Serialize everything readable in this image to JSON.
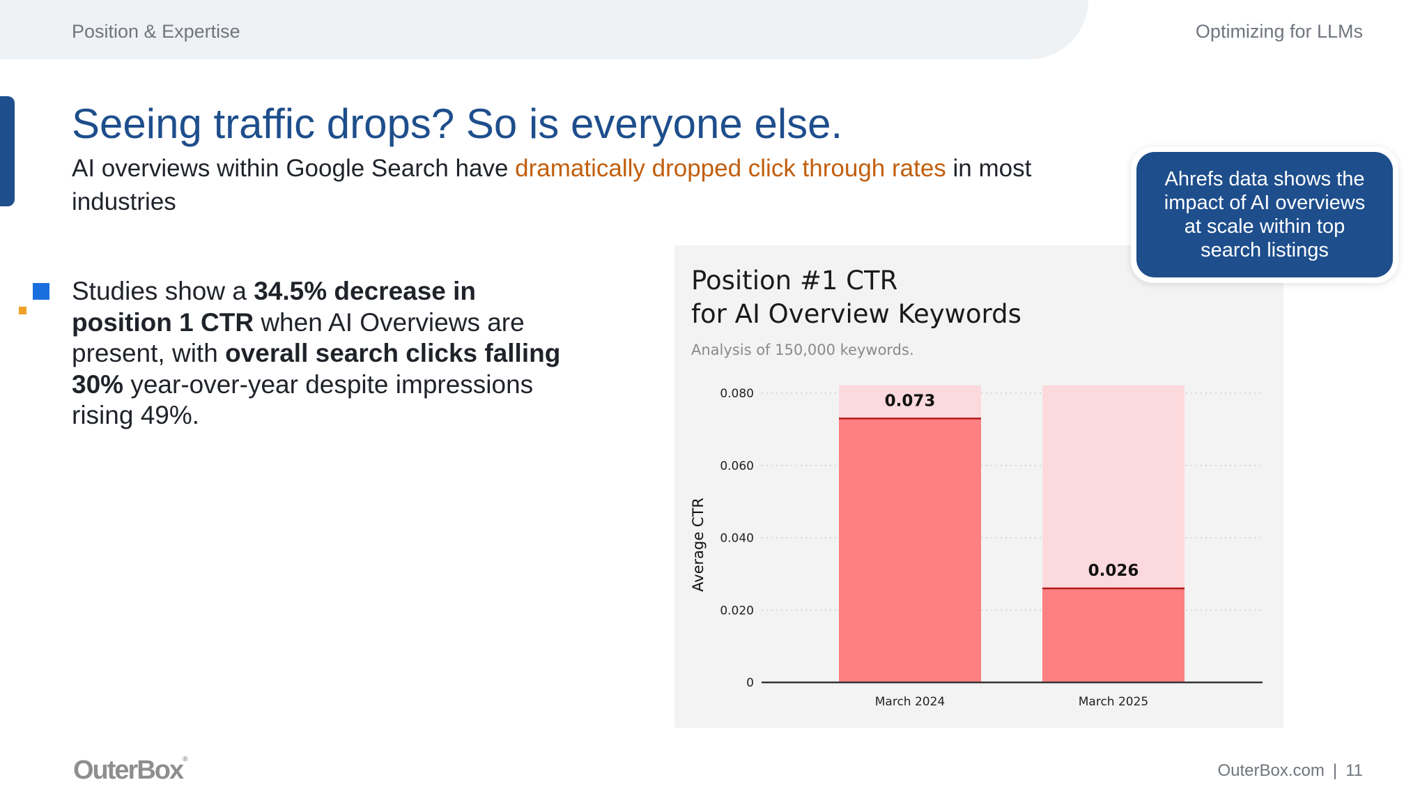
{
  "header": {
    "section": "Position & Expertise",
    "deck_title": "Optimizing for LLMs"
  },
  "slide": {
    "headline": "Seeing traffic drops?  So is everyone else.",
    "subhead": {
      "pre": "AI overviews within Google Search have ",
      "highlight": "dramatically dropped click through rates",
      "post": " in most industries"
    },
    "bullet": {
      "t1": "Studies show a ",
      "b1": "34.5% decrease in position 1 CTR",
      "t2": " when AI Overviews are present, with ",
      "b2": "overall search clicks falling 30%",
      "t3": " year-over-year despite impressions rising 49%."
    }
  },
  "callout": {
    "text": "Ahrefs data shows the impact of AI overviews at scale within top search listings"
  },
  "chart_data": {
    "type": "bar",
    "title": [
      "Position #1 CTR",
      "for AI Overview Keywords"
    ],
    "subtitle": "Analysis of 150,000 keywords.",
    "ylabel": "Average CTR",
    "xlabel": "",
    "categories": [
      "March 2024",
      "March 2025"
    ],
    "values": [
      0.073,
      0.026
    ],
    "value_labels": [
      "0.073",
      "0.026"
    ],
    "ylim": [
      0,
      0.08
    ],
    "yticks": [
      0,
      0.02,
      0.04,
      0.06,
      0.08
    ],
    "ytick_labels": [
      "0",
      "0.020",
      "0.040",
      "0.060",
      "0.080"
    ],
    "grid": true,
    "colors": {
      "bar": "#ff8080",
      "bar_bg": "#fcd9dc",
      "cap": "#b11b1b"
    }
  },
  "footer": {
    "logo": "OuterBox",
    "site": "OuterBox.com",
    "separator": "|",
    "page": "11"
  }
}
